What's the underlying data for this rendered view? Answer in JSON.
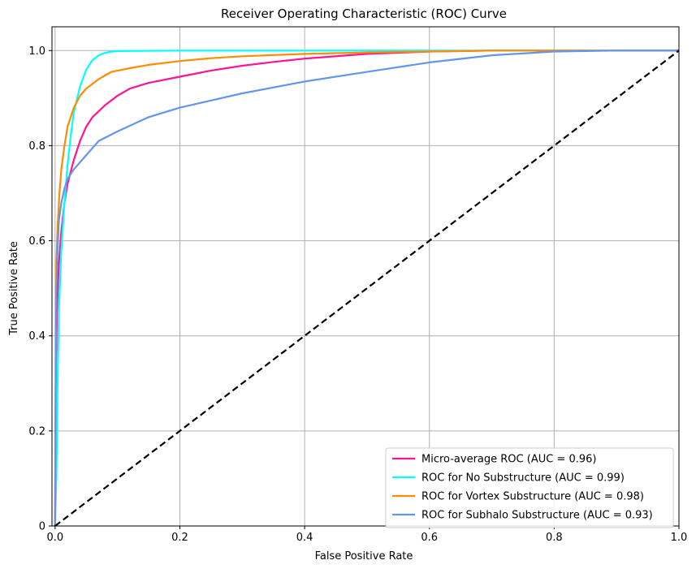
{
  "chart_data": {
    "type": "line",
    "title": "Receiver Operating Characteristic (ROC) Curve",
    "xlabel": "False Positive Rate",
    "ylabel": "True Positive Rate",
    "xlim": [
      -0.005,
      1.0
    ],
    "ylim": [
      0.0,
      1.05
    ],
    "xticks": [
      0.0,
      0.2,
      0.4,
      0.6,
      0.8,
      1.0
    ],
    "yticks": [
      0.0,
      0.2,
      0.4,
      0.6,
      0.8,
      1.0
    ],
    "xtick_labels": [
      "0.0",
      "0.2",
      "0.4",
      "0.6",
      "0.8",
      "1.0"
    ],
    "ytick_labels": [
      "0",
      "0.2",
      "0.4",
      "0.6",
      "0.8",
      "1.0"
    ],
    "grid": true,
    "legend_position": "bottom-right",
    "series": [
      {
        "name": "Micro-average ROC (AUC = 0.96)",
        "color": "#ff1493",
        "x": [
          0.0,
          0.001,
          0.003,
          0.006,
          0.01,
          0.015,
          0.02,
          0.03,
          0.04,
          0.05,
          0.06,
          0.08,
          0.1,
          0.12,
          0.15,
          0.2,
          0.25,
          0.3,
          0.35,
          0.4,
          0.5,
          0.6,
          0.7,
          0.8,
          1.0
        ],
        "y": [
          0.0,
          0.3,
          0.45,
          0.55,
          0.62,
          0.68,
          0.72,
          0.77,
          0.81,
          0.84,
          0.86,
          0.885,
          0.905,
          0.92,
          0.932,
          0.945,
          0.958,
          0.968,
          0.976,
          0.983,
          0.993,
          0.998,
          1.0,
          1.0,
          1.0
        ]
      },
      {
        "name": "ROC for No Substructure (AUC = 0.99)",
        "color": "#00ffff",
        "x": [
          0.0,
          0.002,
          0.004,
          0.006,
          0.01,
          0.015,
          0.02,
          0.025,
          0.03,
          0.04,
          0.05,
          0.06,
          0.07,
          0.08,
          0.09,
          0.1,
          0.2,
          0.4,
          0.6,
          0.8,
          1.0
        ],
        "y": [
          0.0,
          0.1,
          0.3,
          0.45,
          0.58,
          0.68,
          0.76,
          0.82,
          0.87,
          0.925,
          0.96,
          0.98,
          0.99,
          0.995,
          0.998,
          0.999,
          1.0,
          1.0,
          1.0,
          1.0,
          1.0
        ]
      },
      {
        "name": "ROC for Vortex Substructure (AUC = 0.98)",
        "color": "#ff8c00",
        "x": [
          0.0,
          0.002,
          0.004,
          0.007,
          0.01,
          0.015,
          0.02,
          0.03,
          0.04,
          0.05,
          0.07,
          0.09,
          0.12,
          0.15,
          0.2,
          0.25,
          0.3,
          0.4,
          0.5,
          0.6,
          0.7,
          0.8,
          1.0
        ],
        "y": [
          0.0,
          0.55,
          0.63,
          0.7,
          0.75,
          0.8,
          0.84,
          0.88,
          0.905,
          0.92,
          0.94,
          0.955,
          0.963,
          0.97,
          0.978,
          0.984,
          0.988,
          0.993,
          0.996,
          0.998,
          1.0,
          1.0,
          1.0
        ]
      },
      {
        "name": "ROC for Subhalo Substructure (AUC = 0.93)",
        "color": "#6495ed",
        "x": [
          0.0,
          0.001,
          0.002,
          0.004,
          0.006,
          0.01,
          0.015,
          0.02,
          0.03,
          0.05,
          0.07,
          0.1,
          0.15,
          0.2,
          0.3,
          0.4,
          0.5,
          0.6,
          0.7,
          0.8,
          0.9,
          1.0
        ],
        "y": [
          0.0,
          0.35,
          0.5,
          0.58,
          0.64,
          0.68,
          0.71,
          0.73,
          0.75,
          0.78,
          0.81,
          0.83,
          0.86,
          0.88,
          0.91,
          0.935,
          0.955,
          0.975,
          0.99,
          0.998,
          1.0,
          1.0
        ]
      },
      {
        "name": "",
        "color": "#000000",
        "dashed": true,
        "x": [
          0.0,
          1.0
        ],
        "y": [
          0.0,
          1.0
        ]
      }
    ]
  }
}
